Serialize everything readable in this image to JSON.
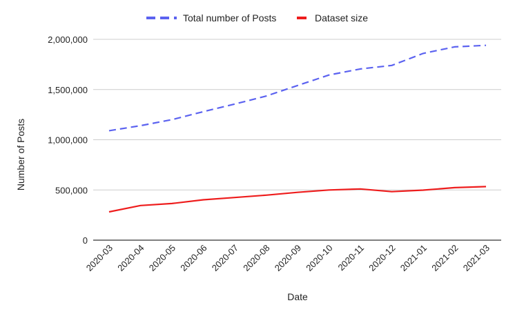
{
  "chart_data": {
    "type": "line",
    "title": "",
    "xlabel": "Date",
    "ylabel": "Number of Posts",
    "categories": [
      "2020-03",
      "2020-04",
      "2020-05",
      "2020-06",
      "2020-07",
      "2020-08",
      "2020-09",
      "2020-10",
      "2020-11",
      "2020-12",
      "2021-01",
      "2021-02",
      "2021-03"
    ],
    "ylim": [
      0,
      2000000
    ],
    "yticks": [
      0,
      500000,
      1000000,
      1500000,
      2000000
    ],
    "ytick_labels": [
      "0",
      "500,000",
      "1,000,000",
      "1,500,000",
      "2,000,000"
    ],
    "grid": true,
    "legend_position": "top",
    "series": [
      {
        "name": "Total number of Posts",
        "color": "#5b62f0",
        "style": "dashed",
        "values": [
          1090000,
          1140000,
          1200000,
          1280000,
          1355000,
          1435000,
          1540000,
          1645000,
          1705000,
          1740000,
          1860000,
          1925000,
          1940000
        ]
      },
      {
        "name": "Dataset size",
        "color": "#ee1c1c",
        "style": "solid",
        "values": [
          282000,
          345000,
          365000,
          402000,
          425000,
          448000,
          476000,
          500000,
          510000,
          483000,
          498000,
          523000,
          533000
        ]
      }
    ]
  }
}
